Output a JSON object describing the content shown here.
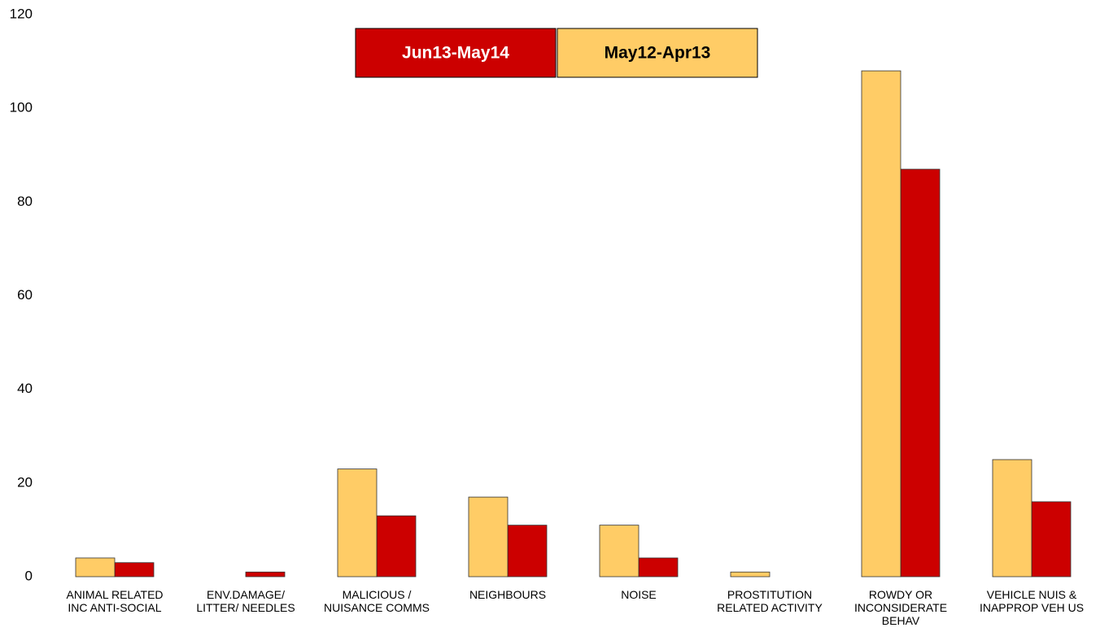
{
  "chart_data": {
    "type": "bar",
    "categories": [
      "ANIMAL RELATED\nINC ANTI-SOCIAL",
      "ENV.DAMAGE/\nLITTER/ NEEDLES",
      "MALICIOUS /\nNUISANCE COMMS",
      "NEIGHBOURS",
      "NOISE",
      "PROSTITUTION\nRELATED ACTIVITY",
      "ROWDY OR\nINCONSIDERATE\nBEHAV",
      "VEHICLE NUIS &\nINAPPROP VEH US"
    ],
    "series": [
      {
        "name": "Jun13-May14",
        "color": "#cc0000",
        "values": [
          3,
          1,
          13,
          11,
          4,
          0,
          87,
          16
        ]
      },
      {
        "name": "May12-Apr13",
        "color": "#ffcc66",
        "values": [
          4,
          0,
          23,
          17,
          11,
          1,
          108,
          25
        ]
      }
    ],
    "ylim": [
      0,
      120
    ],
    "yticks": [
      0,
      20,
      40,
      60,
      80,
      100,
      120
    ],
    "grid": false,
    "legend": "top"
  }
}
